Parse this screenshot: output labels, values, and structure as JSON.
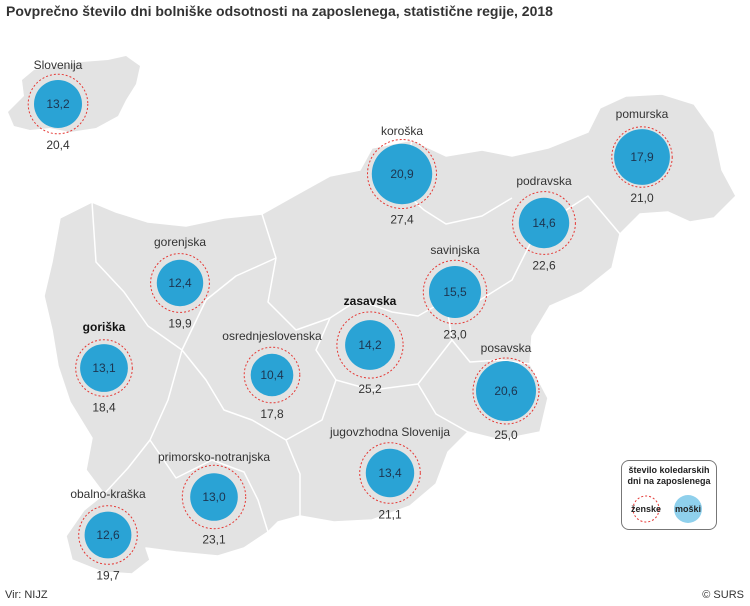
{
  "title": "Povprečno število dni bolniške odsotnosti na zaposlenega, statistične regije, 2018",
  "source": "Vir: NIJZ",
  "copyright": "© SURS",
  "legend": {
    "title": "število koledarskih dni na zaposlenega",
    "women_label": "ženske",
    "men_label": "moški"
  },
  "colors": {
    "land": "#e3e3e3",
    "border": "#ffffff",
    "men_circle": "#2aa3d5",
    "men_circle_legend": "#8fd0ec",
    "women_ring": "#e53935"
  },
  "regions": [
    {
      "name": "Slovenija",
      "men": 13.2,
      "women": 20.4
    },
    {
      "name": "koroška",
      "men": 20.9,
      "women": 27.4
    },
    {
      "name": "pomurska",
      "men": 17.9,
      "women": 21.0
    },
    {
      "name": "podravska",
      "men": 14.6,
      "women": 22.6
    },
    {
      "name": "savinjska",
      "men": 15.5,
      "women": 23.0
    },
    {
      "name": "gorenjska",
      "men": 12.4,
      "women": 19.9
    },
    {
      "name": "zasavska",
      "men": 14.2,
      "women": 25.2
    },
    {
      "name": "goriška",
      "men": 13.1,
      "women": 18.4
    },
    {
      "name": "osrednjeslovenska",
      "men": 10.4,
      "women": 17.8
    },
    {
      "name": "posavska",
      "men": 20.6,
      "women": 25.0
    },
    {
      "name": "jugovzhodna Slovenija",
      "men": 13.4,
      "women": 21.1
    },
    {
      "name": "primorsko-notranjska",
      "men": 13.0,
      "women": 23.1
    },
    {
      "name": "obalno-kraška",
      "men": 12.6,
      "women": 19.7
    }
  ]
}
